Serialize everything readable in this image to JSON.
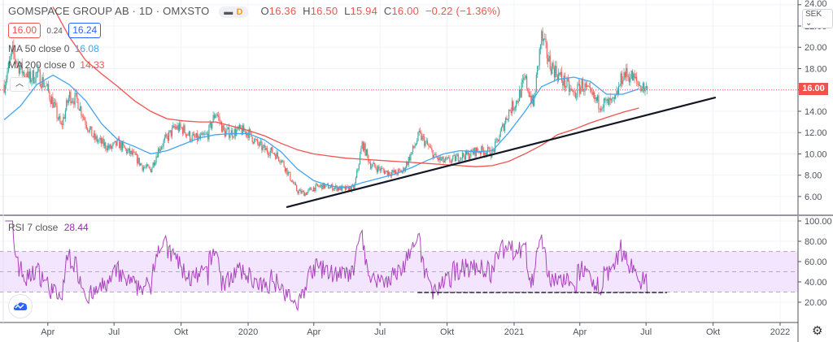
{
  "header": {
    "symbol_title": "GOMSPACE GROUP AB · 1D · OMXSTO",
    "interval_badge": "D",
    "ohlc": {
      "o_label": "O",
      "o": "16.36",
      "h_label": "H",
      "h": "16.50",
      "l_label": "L",
      "l": "15.94",
      "c_label": "C",
      "c": "16.00",
      "change": "−0.22 (−1.36%)"
    },
    "bid": "16.00",
    "spread": "0.24",
    "ask": "16.24",
    "ma50_label": "MA 50 close 0",
    "ma50_value": "16.08",
    "ma200_label": "MA 200 close 0",
    "ma200_value": "14.33",
    "rsi_label": "RSI 7 close",
    "rsi_value": "28.44",
    "currency": "SEK",
    "last_price": "16.00",
    "collapse_icon": "chevron-up-icon"
  },
  "colors": {
    "up": "#26a69a",
    "down": "#ef5350",
    "ma50": "#42a5f5",
    "ma200": "#ef5350",
    "rsi": "#9c27b0",
    "rsi_band": "#f3e5fd",
    "trend": "#131722",
    "grid": "#f0f3fa"
  },
  "chart_data": [
    {
      "type": "candlestick",
      "title": "GOMSPACE GROUP AB · 1D · OMXSTO",
      "ylabel": "SEK",
      "ylim": [
        4.5,
        24
      ],
      "yticks": [
        "24.00",
        "22.00",
        "20.00",
        "18.00",
        "16.00",
        "14.00",
        "12.00",
        "10.00",
        "8.00",
        "6.00"
      ],
      "ytick_values": [
        24,
        22,
        20,
        18,
        16,
        14,
        12,
        10,
        8,
        6
      ],
      "xticks": [
        {
          "label": "Apr",
          "t": 2019.247
        },
        {
          "label": "Jul",
          "t": 2019.496
        },
        {
          "label": "Okt",
          "t": 2019.748
        },
        {
          "label": "2020",
          "t": 2020.0
        },
        {
          "label": "Apr",
          "t": 2020.247
        },
        {
          "label": "Jul",
          "t": 2020.496
        },
        {
          "label": "Okt",
          "t": 2020.748
        },
        {
          "label": "2021",
          "t": 2021.0
        },
        {
          "label": "Apr",
          "t": 2021.247
        },
        {
          "label": "Jul",
          "t": 2021.496
        },
        {
          "label": "Okt",
          "t": 2021.748
        },
        {
          "label": "2022",
          "t": 2022.0
        }
      ],
      "close_samples": {
        "start_year": 2019.083,
        "step_years": 0.0306,
        "values": [
          16.5,
          19.5,
          18,
          17,
          17.5,
          16.5,
          14.8,
          12.5,
          15.5,
          15,
          13,
          11.5,
          11,
          10.5,
          11,
          10.3,
          9.8,
          8.8,
          8.5,
          10.5,
          11.5,
          12.5,
          12.3,
          11.5,
          11.4,
          11.8,
          14.0,
          12,
          12,
          12.2,
          12,
          11,
          10.4,
          10.2,
          9.5,
          8,
          6.5,
          6.3,
          6.8,
          7,
          6.9,
          6.8,
          6.7,
          6.8,
          11.0,
          9,
          8.6,
          8.3,
          8.2,
          8.4,
          10,
          11.8,
          10.8,
          9.6,
          9.3,
          9.4,
          9.8,
          9.9,
          10.3,
          10.3,
          10.1,
          12,
          14,
          15,
          17,
          14.5,
          21,
          18.5,
          17.5,
          16.5,
          15.5,
          16.5,
          15.5,
          14.8,
          14.7,
          14.8,
          17.5,
          17.3,
          16.5,
          16.0
        ]
      },
      "ma50": {
        "start_year": 2019.083,
        "step_years": 0.0612,
        "values": [
          13.2,
          14.5,
          16.5,
          17.4,
          16.5,
          15,
          12.8,
          11.3,
          10.7,
          10,
          10.3,
          10.9,
          11.5,
          11.8,
          11.9,
          11.9,
          11.3,
          10.2,
          8.6,
          7.5,
          7,
          6.8,
          7.3,
          7.7,
          8.1,
          8.7,
          9.4,
          10,
          10.3,
          10.2,
          10.3,
          12,
          14,
          16.3,
          17,
          17.2,
          16.8,
          15.6,
          15.6,
          16.1
        ]
      },
      "ma200": {
        "start_year": 2019.266,
        "step_years": 0.0612,
        "values": [
          23.8,
          21,
          18.8,
          17.5,
          16.3,
          15,
          14,
          13.3,
          13.1,
          13.0,
          13.0,
          12.6,
          12.2,
          11.7,
          11,
          10.4,
          10,
          9.8,
          9.6,
          9.5,
          9.4,
          9.3,
          9.2,
          9.1,
          9.0,
          8.9,
          8.8,
          8.9,
          9.3,
          10,
          10.8,
          11.8,
          12.3,
          12.9,
          13.4,
          13.9,
          14.3
        ]
      },
      "trendline": {
        "from": {
          "t": 2020.144,
          "price": 5.0
        },
        "to": {
          "t": 2021.758,
          "price": 15.3
        }
      },
      "last_close": 16.0
    },
    {
      "type": "line",
      "title": "RSI 7 close",
      "ylim": [
        0,
        105
      ],
      "yticks": [
        "100.00",
        "80.00",
        "60.00",
        "40.00",
        "20.00"
      ],
      "ytick_values": [
        100,
        80,
        60,
        40,
        20
      ],
      "band": [
        30,
        70
      ],
      "midline": 50,
      "last_value": 28.44,
      "support_line": {
        "from_t": 2020.637,
        "to_t": 2021.575,
        "value": 29.5
      }
    }
  ]
}
